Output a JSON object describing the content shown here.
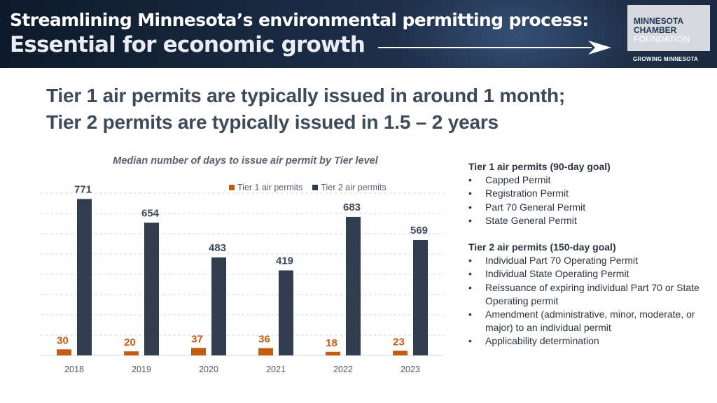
{
  "banner": {
    "title_line1": "Streamlining Minnesota’s environmental permitting process:",
    "title_line2": "Essential for economic growth",
    "logo_line1": "MINNESOTA",
    "logo_line2": "CHAMBER",
    "logo_line3": "FOUNDATION",
    "logo_tagline": "GROWING MINNESOTA"
  },
  "headline": {
    "line1": "Tier 1 air permits are typically issued in around 1 month;",
    "line2": "Tier 2 permits are typically issued in 1.5 – 2 years"
  },
  "colors": {
    "tier1": "#c55a11",
    "tier2": "#323e4f",
    "tier1_label": "#c55a11",
    "tier2_label": "#3d4a5c"
  },
  "chart_data": {
    "type": "bar",
    "title": "Median number of days to issue air permit by Tier level",
    "categories": [
      "2018",
      "2019",
      "2020",
      "2021",
      "2022",
      "2023"
    ],
    "series": [
      {
        "name": "Tier 1 air permits",
        "values": [
          30,
          20,
          37,
          36,
          18,
          23
        ]
      },
      {
        "name": "Tier 2 air permits",
        "values": [
          771,
          654,
          483,
          419,
          683,
          569
        ]
      }
    ],
    "ylim": [
      0,
      900
    ],
    "grid": true,
    "legend_position": "top-right",
    "data_labels": true
  },
  "panel": {
    "tier1_heading": "Tier 1 air permits (90-day goal)",
    "tier1_items": [
      "Capped Permit",
      "Registration Permit",
      "Part 70 General Permit",
      "State General Permit"
    ],
    "tier2_heading": "Tier 2 air permits (150-day goal)",
    "tier2_items": [
      "Individual Part 70 Operating Permit",
      "Individual State Operating Permit",
      "Reissuance of expiring individual Part 70 or State Operating permit",
      "Amendment (administrative, minor, moderate, or major) to an individual permit",
      "Applicability determination"
    ]
  }
}
